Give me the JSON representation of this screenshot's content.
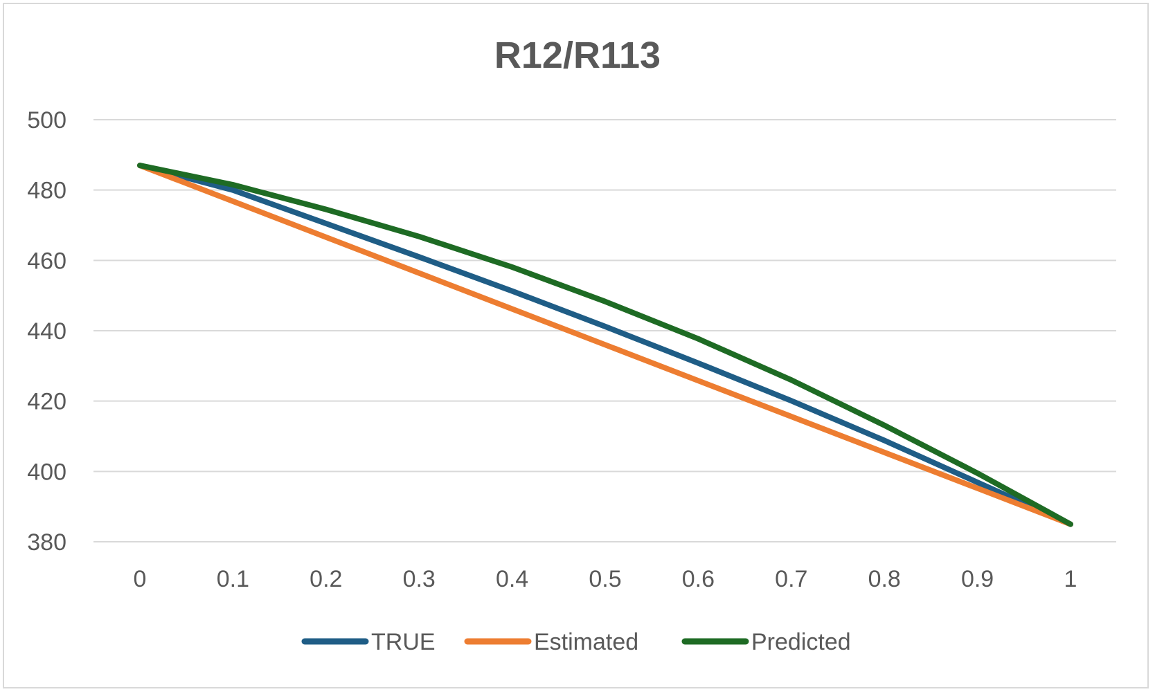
{
  "chart_data": {
    "type": "line",
    "title": "R12/R113",
    "xlabel": "",
    "ylabel": "",
    "categories": [
      "0",
      "0.1",
      "0.2",
      "0.3",
      "0.4",
      "0.5",
      "0.6",
      "0.7",
      "0.8",
      "0.9",
      "1"
    ],
    "x": [
      0,
      0.1,
      0.2,
      0.3,
      0.4,
      0.5,
      0.6,
      0.7,
      0.8,
      0.9,
      1
    ],
    "ylim": [
      380,
      500
    ],
    "yticks": [
      380,
      400,
      420,
      440,
      460,
      480,
      500
    ],
    "grid": true,
    "legend_position": "bottom",
    "series": [
      {
        "name": "TRUE",
        "color": "#1f5d86",
        "values": [
          487,
          480,
          470.5,
          461,
          451.3,
          441.2,
          430.8,
          420.1,
          408.8,
          396.9,
          385
        ]
      },
      {
        "name": "Estimated",
        "color": "#ed7d31",
        "values": [
          487,
          476.8,
          466.6,
          456.4,
          446.2,
          436,
          425.8,
          415.6,
          405.4,
          395.2,
          385
        ]
      },
      {
        "name": "Predicted",
        "color": "#1e6b24",
        "values": [
          487,
          481.5,
          474.5,
          466.8,
          458.1,
          448.3,
          437.7,
          426,
          413.1,
          399.5,
          385
        ]
      }
    ]
  }
}
